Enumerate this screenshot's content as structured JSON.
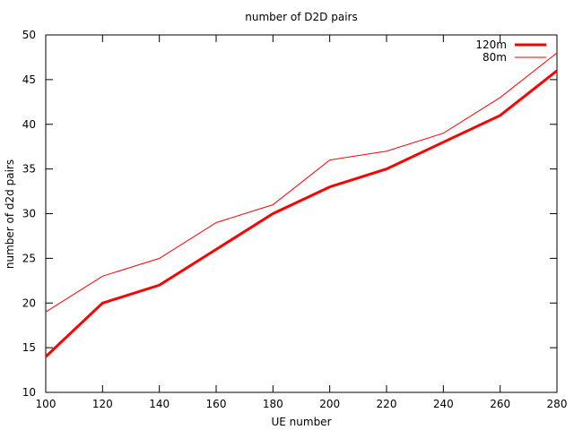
{
  "chart_data": {
    "type": "line",
    "title": "number of D2D pairs",
    "xlabel": "UE number",
    "ylabel": "number of d2d pairs",
    "xlim": [
      100,
      280
    ],
    "ylim": [
      10,
      50
    ],
    "x": [
      100,
      120,
      140,
      160,
      180,
      200,
      220,
      240,
      260,
      280
    ],
    "xticks": [
      "100",
      "120",
      "140",
      "160",
      "180",
      "200",
      "220",
      "240",
      "260",
      "280"
    ],
    "yticks": [
      "10",
      "15",
      "20",
      "25",
      "30",
      "35",
      "40",
      "45",
      "50"
    ],
    "grid": false,
    "legend_position": "top-right",
    "series": [
      {
        "name": "120m",
        "color": "#ff0000",
        "style": "thick",
        "values": [
          14,
          20,
          22,
          26,
          30,
          33,
          35,
          38,
          41,
          46
        ]
      },
      {
        "name": "80m",
        "color": "#ff0000",
        "style": "thin",
        "values": [
          19,
          23,
          25,
          29,
          31,
          36,
          37,
          39,
          43,
          48
        ]
      }
    ]
  }
}
